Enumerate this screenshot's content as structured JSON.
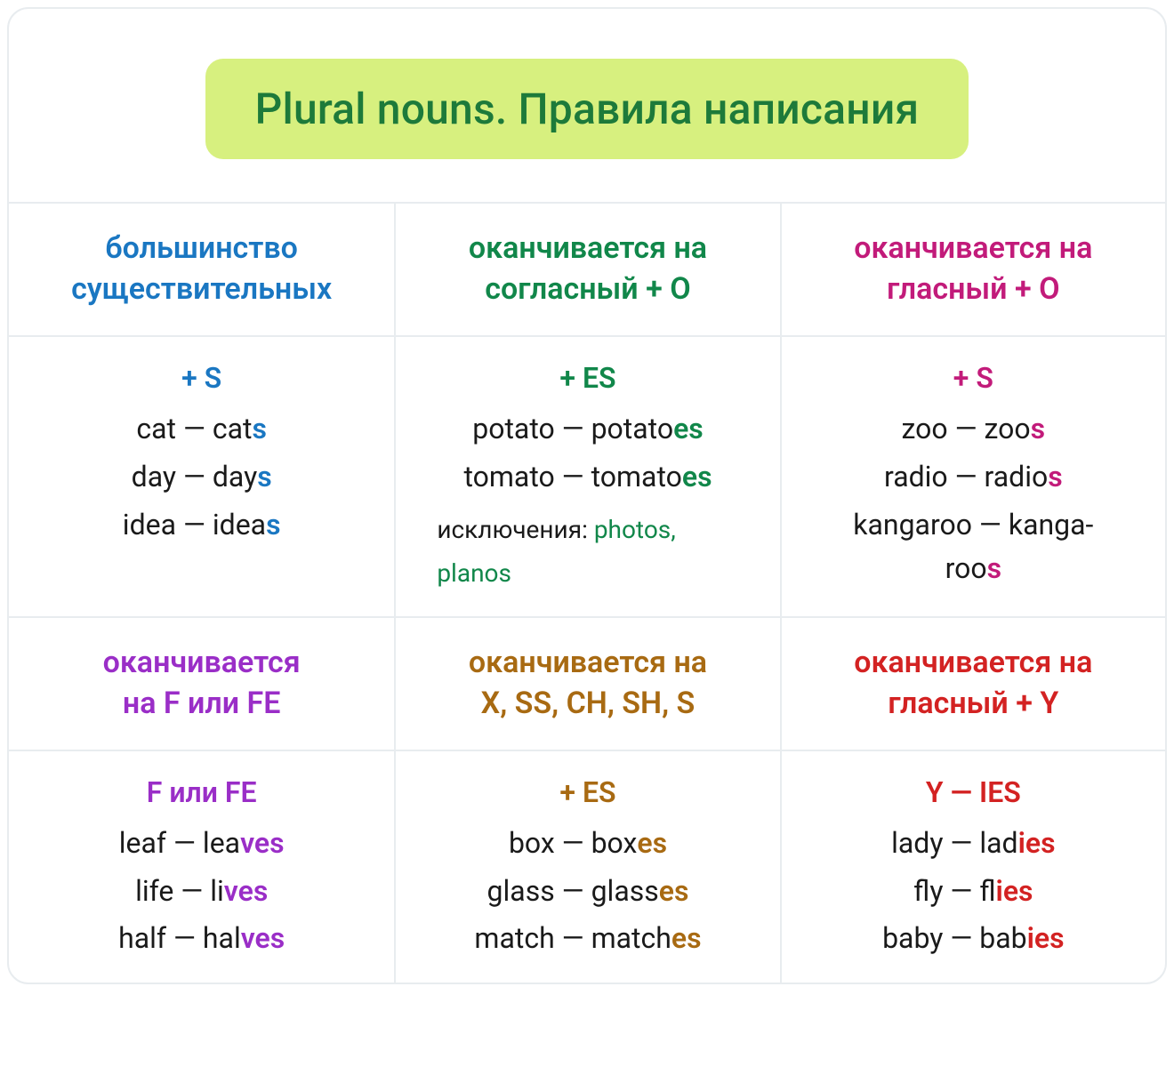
{
  "title": "Plural nouns. Правила написания",
  "colors": {
    "title_bg": "#d7f07f",
    "title_fg": "#1d7a3a",
    "border": "#e8ecef",
    "text": "#1a1a1a",
    "blue": "#1a77c2",
    "green": "#11874a",
    "magenta": "#c21b7a",
    "purple": "#9a2ec7",
    "brown": "#a86a12",
    "red": "#d32222"
  },
  "cells": [
    {
      "accent": "blue",
      "header_html": "большинство<br>существительных",
      "rule": "+ S",
      "examples": [
        {
          "base": "cat — cat",
          "suffix": "s"
        },
        {
          "base": "day — day",
          "suffix": "s"
        },
        {
          "base": "idea — idea",
          "suffix": "s"
        }
      ]
    },
    {
      "accent": "green",
      "header_html": "оканчивается на<br>согласный + O",
      "rule": "+ ES",
      "examples": [
        {
          "base": "potato — potato",
          "suffix": "es"
        },
        {
          "base": "tomato — tomato",
          "suffix": "es"
        }
      ],
      "exception_label": "исключения: ",
      "exception_words": "photos, planos"
    },
    {
      "accent": "magenta",
      "header_html": "оканчивается на<br>гласный + O",
      "rule": "+ S",
      "examples": [
        {
          "base": "zoo — zoo",
          "suffix": "s"
        },
        {
          "base": "radio — radio",
          "suffix": "s"
        },
        {
          "base": "kangaroo — kanga-<br>roo",
          "suffix": "s"
        }
      ]
    },
    {
      "accent": "purple",
      "header_html": "оканчивается<br>на F или FE",
      "rule": "F или FE",
      "examples": [
        {
          "base": "leaf — lea",
          "suffix": "ves"
        },
        {
          "base": "life — li",
          "suffix": "ves"
        },
        {
          "base": "half — hal",
          "suffix": "ves"
        }
      ]
    },
    {
      "accent": "brown",
      "header_html": "оканчивается на<br>X, SS, CH, SH, S",
      "rule": "+ ES",
      "examples": [
        {
          "base": "box — box",
          "suffix": "es"
        },
        {
          "base": "glass — glass",
          "suffix": "es"
        },
        {
          "base": "match — match",
          "suffix": "es"
        }
      ]
    },
    {
      "accent": "red",
      "header_html": "оканчивается на<br>гласный + Y",
      "rule": "Y — IES",
      "examples": [
        {
          "base": "lady — lad",
          "suffix": "ies"
        },
        {
          "base": "fly — fl",
          "suffix": "ies"
        },
        {
          "base": "baby — bab",
          "suffix": "ies"
        }
      ]
    }
  ]
}
